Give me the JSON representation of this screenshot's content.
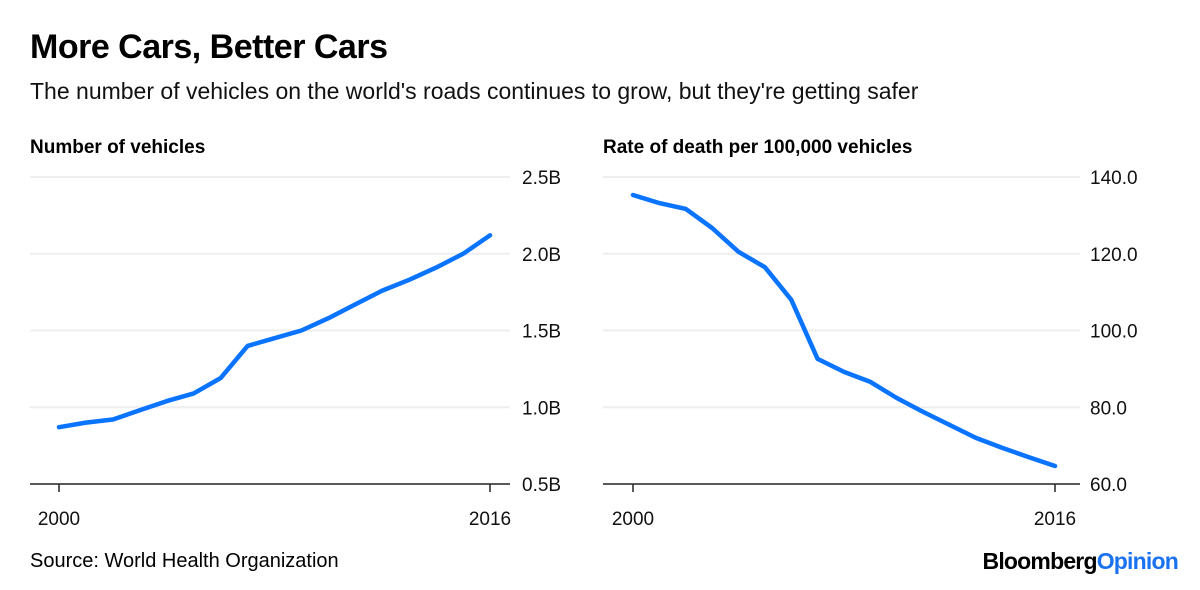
{
  "header": {
    "title": "More Cars, Better Cars",
    "subtitle": "The number of vehicles on the world's roads continues to grow, but they're getting safer"
  },
  "footer": {
    "source": "Source: World Health Organization",
    "logo_main": "Bloomberg",
    "logo_accent": "Opinion"
  },
  "colors": {
    "line": "#0a74ff",
    "grid": "#eeeeee",
    "axis": "#222222",
    "logo_accent": "#1a72f0"
  },
  "chart_data": [
    {
      "type": "line",
      "title": "Number of vehicles",
      "x": [
        2000,
        2001,
        2002,
        2003,
        2004,
        2005,
        2006,
        2007,
        2008,
        2009,
        2010,
        2011,
        2012,
        2013,
        2014,
        2015,
        2016
      ],
      "values": [
        0.87,
        0.9,
        0.92,
        0.98,
        1.04,
        1.09,
        1.19,
        1.4,
        1.45,
        1.5,
        1.58,
        1.67,
        1.76,
        1.83,
        1.91,
        2.0,
        2.12
      ],
      "xlim": [
        2000,
        2016
      ],
      "ylim": [
        0.5,
        2.5
      ],
      "xticks": [
        "2000",
        "2016"
      ],
      "yticks": [
        "0.5B",
        "1.0B",
        "1.5B",
        "2.0B",
        "2.5B"
      ],
      "grid": true
    },
    {
      "type": "line",
      "title": "Rate of death per 100,000 vehicles",
      "x": [
        2000,
        2001,
        2002,
        2003,
        2004,
        2005,
        2006,
        2007,
        2008,
        2009,
        2010,
        2011,
        2012,
        2013,
        2014,
        2015,
        2016
      ],
      "values": [
        135.3,
        133.2,
        131.7,
        126.7,
        120.5,
        116.5,
        108.0,
        92.6,
        89.2,
        86.6,
        82.4,
        78.8,
        75.4,
        72.0,
        69.4,
        67.0,
        64.7
      ],
      "xlim": [
        2000,
        2016
      ],
      "ylim": [
        60,
        140
      ],
      "xticks": [
        "2000",
        "2016"
      ],
      "yticks": [
        "60.0",
        "80.0",
        "100.0",
        "120.0",
        "140.0"
      ],
      "grid": true
    }
  ]
}
